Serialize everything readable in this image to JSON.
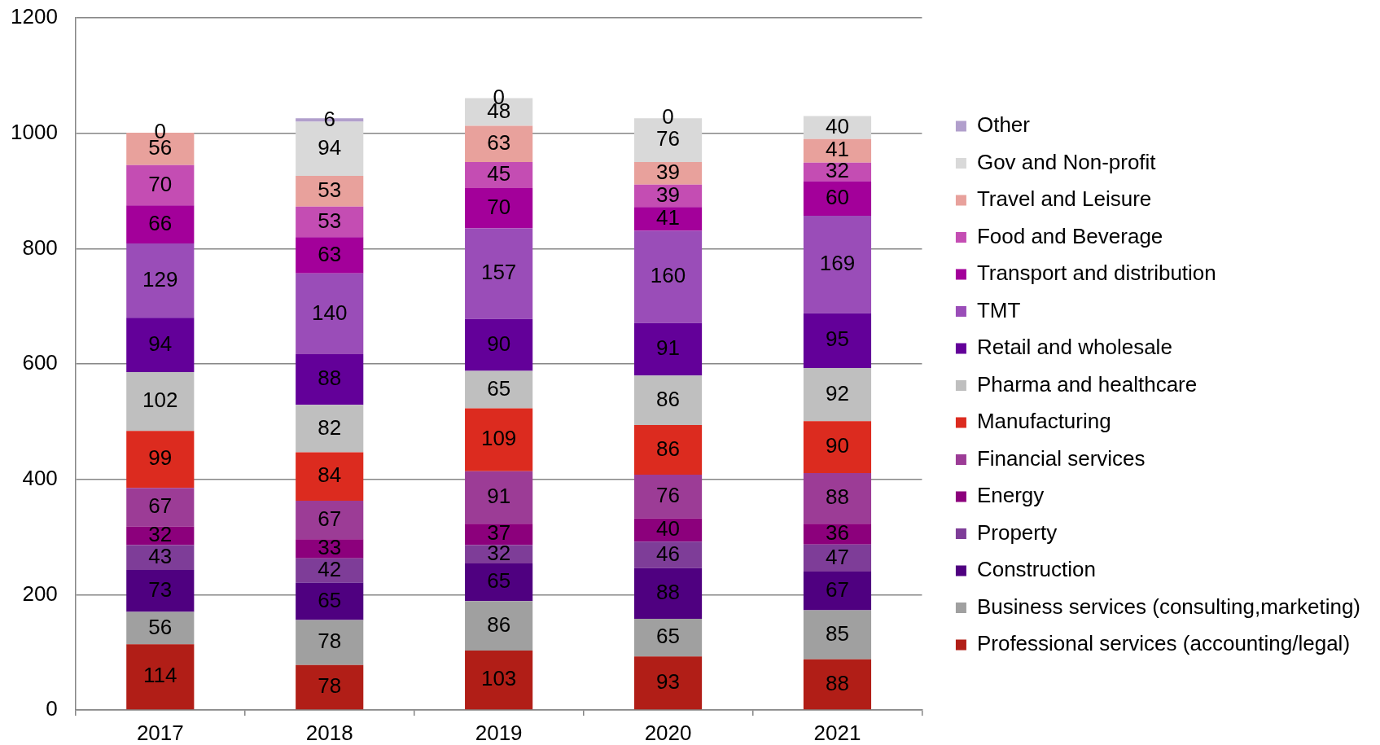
{
  "chart_data": {
    "type": "bar",
    "stacked": true,
    "categories": [
      "2017",
      "2018",
      "2019",
      "2020",
      "2021"
    ],
    "ylim": [
      0,
      1200
    ],
    "yticks": [
      0,
      200,
      400,
      600,
      800,
      1000,
      1200
    ],
    "grid": "y",
    "legend": "right",
    "data_labels": true,
    "series": [
      {
        "name": "Professional services (accounting/legal)",
        "color": "#b11e17",
        "values": [
          114,
          78,
          103,
          93,
          88
        ]
      },
      {
        "name": "Business services (consulting,marketing)",
        "color": "#a0a0a0",
        "values": [
          56,
          78,
          86,
          65,
          85
        ]
      },
      {
        "name": "Construction",
        "color": "#4f0080",
        "values": [
          73,
          65,
          65,
          88,
          67
        ]
      },
      {
        "name": "Property",
        "color": "#7e3d98",
        "values": [
          43,
          42,
          32,
          46,
          47
        ]
      },
      {
        "name": "Energy",
        "color": "#8c007c",
        "values": [
          32,
          33,
          37,
          40,
          36
        ]
      },
      {
        "name": "Financial services",
        "color": "#9c3c96",
        "values": [
          67,
          67,
          91,
          76,
          88
        ]
      },
      {
        "name": "Manufacturing",
        "color": "#dc2b1f",
        "values": [
          99,
          84,
          109,
          86,
          90
        ]
      },
      {
        "name": "Pharma and healthcare",
        "color": "#bfbfbf",
        "values": [
          102,
          82,
          65,
          86,
          92
        ]
      },
      {
        "name": "Retail and wholesale",
        "color": "#630099",
        "values": [
          94,
          88,
          90,
          91,
          95
        ]
      },
      {
        "name": "TMT",
        "color": "#9a4db8",
        "values": [
          129,
          140,
          157,
          160,
          169
        ]
      },
      {
        "name": "Transport and distribution",
        "color": "#a3009a",
        "values": [
          66,
          63,
          70,
          41,
          60
        ]
      },
      {
        "name": "Food and Beverage",
        "color": "#c44db3",
        "values": [
          70,
          53,
          45,
          39,
          32
        ]
      },
      {
        "name": "Travel and Leisure",
        "color": "#e8a19c",
        "values": [
          56,
          53,
          63,
          39,
          41
        ]
      },
      {
        "name": "Gov and Non-profit",
        "color": "#d9d9d9",
        "values": [
          null,
          94,
          48,
          76,
          40
        ]
      },
      {
        "name": "Other",
        "color": "#b19fcc",
        "values": [
          0,
          6,
          0,
          0,
          null
        ]
      }
    ]
  }
}
